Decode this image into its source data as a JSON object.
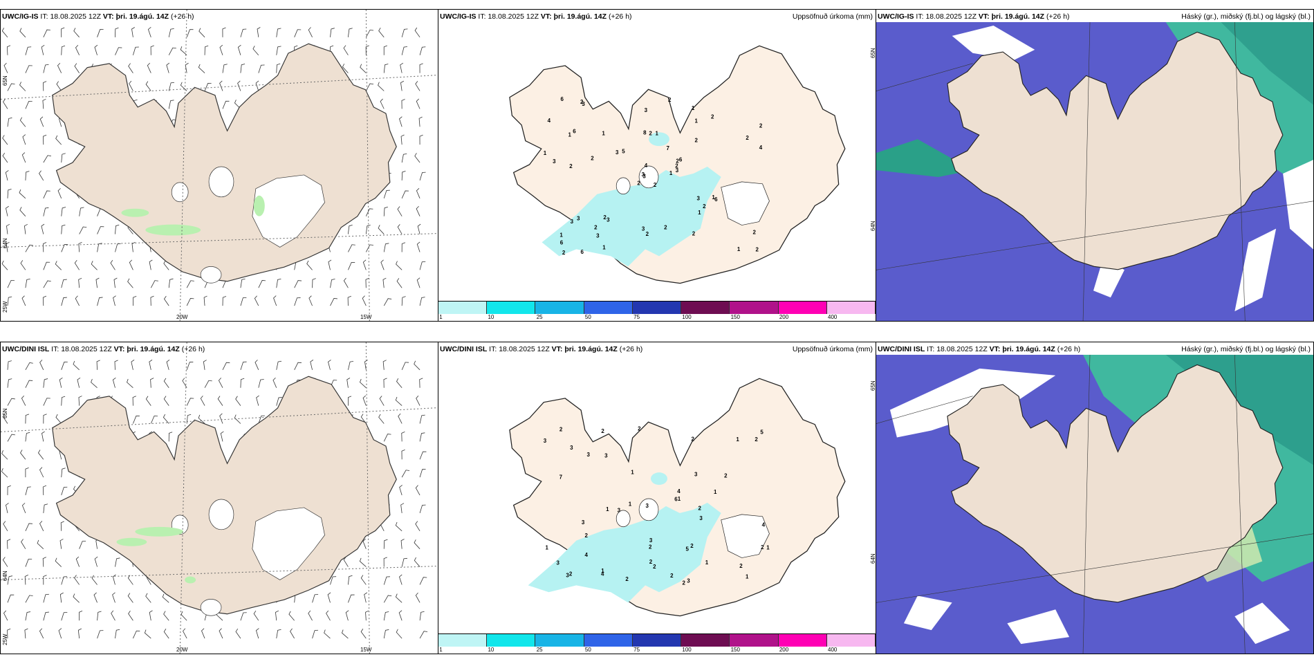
{
  "rows": [
    {
      "model": "UWC/IG-IS",
      "it_label": "IT:",
      "it": "18.08.2025 12Z",
      "vt_label": "VT:",
      "vt": "þri. 19.ágú. 14Z",
      "lead": "(+26 h)"
    },
    {
      "model": "UWC/DINI ISL",
      "it_label": "IT:",
      "it": "18.08.2025 12Z",
      "vt_label": "VT:",
      "vt": "þri. 19.ágú. 14Z",
      "lead": "(+26 h)"
    }
  ],
  "precip_title": "Uppsöfnuð úrkoma (mm)",
  "cloud_title": "Háský (gr.), miðský (fj.bl.) og lágský (bl.)",
  "axis": {
    "lat_top": "65N",
    "lat_bottom": "64N",
    "lon_left": "25W",
    "lon_mid": "20W",
    "lon_right": "15W",
    "lat_right_top": "65N",
    "lat_right_bottom": "64N"
  },
  "colorbar": {
    "labels": [
      "1",
      "10",
      "25",
      "50",
      "75",
      "100",
      "150",
      "200",
      "400"
    ],
    "colors": [
      "#bff5f5",
      "#12e6eb",
      "#18b4e6",
      "#2f64e8",
      "#2337b0",
      "#6e0d52",
      "#b0128a",
      "#ff00b4",
      "#f7b8f0"
    ]
  },
  "precip_labels_top": [
    "2",
    "1",
    "3",
    "1",
    "2",
    "3",
    "1",
    "1",
    "1",
    "1",
    "3",
    "2",
    "2",
    "2",
    "2",
    "2",
    "6",
    "8",
    "7",
    "3",
    "5",
    "6",
    "3",
    "2",
    "6",
    "6",
    "6",
    "3",
    "3",
    "3",
    "4",
    "3",
    "3",
    "4",
    "1",
    "2",
    "2",
    "1",
    "2",
    "1",
    "2",
    "3",
    "2",
    "1",
    "1",
    "1",
    "2",
    "2",
    "2",
    "3",
    "3",
    "2",
    "4",
    "2",
    "2",
    "2",
    "2",
    "6",
    "2"
  ],
  "precip_labels_bottom": [
    "2",
    "2",
    "1",
    "1",
    "2",
    "3",
    "1",
    "1",
    "2",
    "1",
    "1",
    "2",
    "1",
    "2",
    "2",
    "6",
    "7",
    "4",
    "3",
    "3",
    "5",
    "5",
    "4",
    "3",
    "2",
    "3",
    "1",
    "2",
    "2",
    "3",
    "3",
    "3",
    "3",
    "2",
    "4",
    "2",
    "2",
    "3",
    "3",
    "2",
    "1",
    "1",
    "1",
    "2",
    "3",
    "2",
    "4",
    "2",
    "3",
    "2"
  ]
}
